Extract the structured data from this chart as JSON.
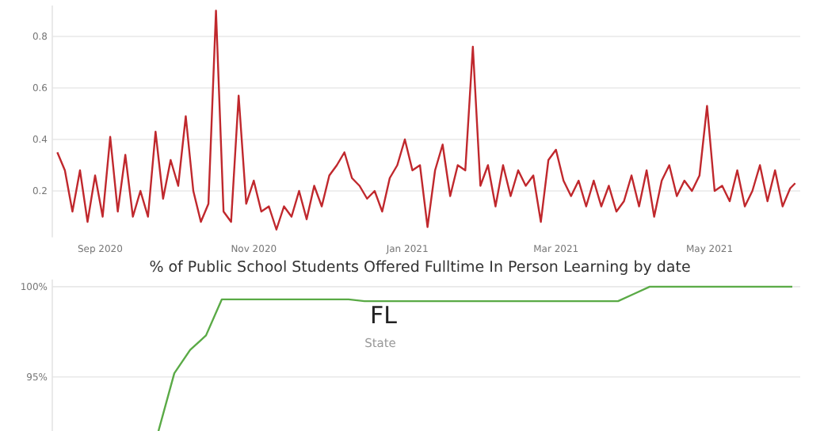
{
  "chart_data": [
    {
      "type": "line",
      "x": [
        "2020-08-15",
        "2020-08-18",
        "2020-08-21",
        "2020-08-24",
        "2020-08-27",
        "2020-08-30",
        "2020-09-02",
        "2020-09-05",
        "2020-09-08",
        "2020-09-11",
        "2020-09-14",
        "2020-09-17",
        "2020-09-20",
        "2020-09-23",
        "2020-09-26",
        "2020-09-29",
        "2020-10-02",
        "2020-10-05",
        "2020-10-08",
        "2020-10-11",
        "2020-10-14",
        "2020-10-17",
        "2020-10-20",
        "2020-10-23",
        "2020-10-26",
        "2020-10-29",
        "2020-11-01",
        "2020-11-04",
        "2020-11-07",
        "2020-11-10",
        "2020-11-13",
        "2020-11-16",
        "2020-11-19",
        "2020-11-22",
        "2020-11-25",
        "2020-11-28",
        "2020-12-01",
        "2020-12-04",
        "2020-12-07",
        "2020-12-10",
        "2020-12-13",
        "2020-12-16",
        "2020-12-19",
        "2020-12-22",
        "2020-12-25",
        "2020-12-28",
        "2020-12-31",
        "2021-01-03",
        "2021-01-06",
        "2021-01-09",
        "2021-01-12",
        "2021-01-15",
        "2021-01-18",
        "2021-01-21",
        "2021-01-24",
        "2021-01-27",
        "2021-01-30",
        "2021-02-02",
        "2021-02-05",
        "2021-02-08",
        "2021-02-11",
        "2021-02-14",
        "2021-02-17",
        "2021-02-20",
        "2021-02-23",
        "2021-02-26",
        "2021-03-01",
        "2021-03-04",
        "2021-03-07",
        "2021-03-10",
        "2021-03-13",
        "2021-03-16",
        "2021-03-19",
        "2021-03-22",
        "2021-03-25",
        "2021-03-28",
        "2021-03-31",
        "2021-04-03",
        "2021-04-06",
        "2021-04-09",
        "2021-04-12",
        "2021-04-15",
        "2021-04-18",
        "2021-04-21",
        "2021-04-24",
        "2021-04-27",
        "2021-04-30",
        "2021-05-03",
        "2021-05-06",
        "2021-05-09",
        "2021-05-12",
        "2021-05-15",
        "2021-05-18",
        "2021-05-21",
        "2021-05-24",
        "2021-05-27",
        "2021-05-30",
        "2021-06-02",
        "2021-06-04"
      ],
      "series": [
        {
          "color": "#c0282d",
          "values": [
            0.35,
            0.28,
            0.12,
            0.28,
            0.08,
            0.26,
            0.1,
            0.41,
            0.12,
            0.34,
            0.1,
            0.2,
            0.1,
            0.43,
            0.17,
            0.32,
            0.22,
            0.49,
            0.2,
            0.08,
            0.15,
            0.9,
            0.12,
            0.08,
            0.57,
            0.15,
            0.24,
            0.12,
            0.14,
            0.05,
            0.14,
            0.1,
            0.2,
            0.09,
            0.22,
            0.14,
            0.26,
            0.3,
            0.35,
            0.25,
            0.22,
            0.17,
            0.2,
            0.12,
            0.25,
            0.3,
            0.4,
            0.28,
            0.3,
            0.06,
            0.28,
            0.38,
            0.18,
            0.3,
            0.28,
            0.76,
            0.22,
            0.3,
            0.14,
            0.3,
            0.18,
            0.28,
            0.22,
            0.26,
            0.08,
            0.32,
            0.36,
            0.24,
            0.18,
            0.24,
            0.14,
            0.24,
            0.14,
            0.22,
            0.12,
            0.16,
            0.26,
            0.14,
            0.28,
            0.1,
            0.24,
            0.3,
            0.18,
            0.24,
            0.2,
            0.26,
            0.53,
            0.2,
            0.22,
            0.16,
            0.28,
            0.14,
            0.2,
            0.3,
            0.16,
            0.28,
            0.14,
            0.21,
            0.23
          ]
        }
      ],
      "xlim": [
        "2020-08-13",
        "2021-06-06"
      ],
      "xticks": [
        {
          "value": "2020-09-01",
          "label": "Sep 2020"
        },
        {
          "value": "2020-11-01",
          "label": "Nov 2020"
        },
        {
          "value": "2021-01-01",
          "label": "Jan 2021"
        },
        {
          "value": "2021-03-01",
          "label": "Mar 2021"
        },
        {
          "value": "2021-05-01",
          "label": "May 2021"
        }
      ],
      "ylim": [
        0.02,
        0.92
      ],
      "yticks": [
        0.2,
        0.4,
        0.6,
        0.8
      ],
      "grid": "y",
      "marker": "none",
      "line_style": "solid"
    },
    {
      "type": "line",
      "title": "% of Public School Students Offered Fulltime In Person Learning by date",
      "categories": [
        null,
        null,
        null,
        null,
        null,
        null,
        null,
        null,
        null,
        null,
        null,
        null,
        null,
        null,
        null,
        null,
        null,
        null,
        null,
        null,
        null,
        null,
        null,
        null,
        null,
        null,
        null,
        null,
        null,
        null,
        null,
        null,
        null,
        null,
        null,
        null,
        null,
        null,
        null,
        null,
        null,
        null,
        null,
        null,
        null,
        null,
        null,
        null
      ],
      "series": [
        {
          "color": "#5aaa46",
          "values": [
            null,
            null,
            null,
            null,
            null,
            null,
            null,
            92,
            95.2,
            96.5,
            97.3,
            99.3,
            99.3,
            99.3,
            99.3,
            99.3,
            99.3,
            99.3,
            99.3,
            99.3,
            99.2,
            99.2,
            99.2,
            99.2,
            99.2,
            99.2,
            99.2,
            99.2,
            99.2,
            99.2,
            99.2,
            99.2,
            99.2,
            99.2,
            99.2,
            99.2,
            99.2,
            99.6,
            100,
            100,
            100,
            100,
            100,
            100,
            100,
            100,
            100,
            100
          ]
        }
      ],
      "ylim": [
        92,
        100.4
      ],
      "yticks": [
        {
          "value": 95,
          "label": "95%"
        },
        {
          "value": 100,
          "label": "100%"
        }
      ],
      "tick_labels": "y",
      "grid": "y",
      "marker": "none",
      "line_style": "solid",
      "annotations": [
        "FL",
        "State"
      ]
    }
  ]
}
